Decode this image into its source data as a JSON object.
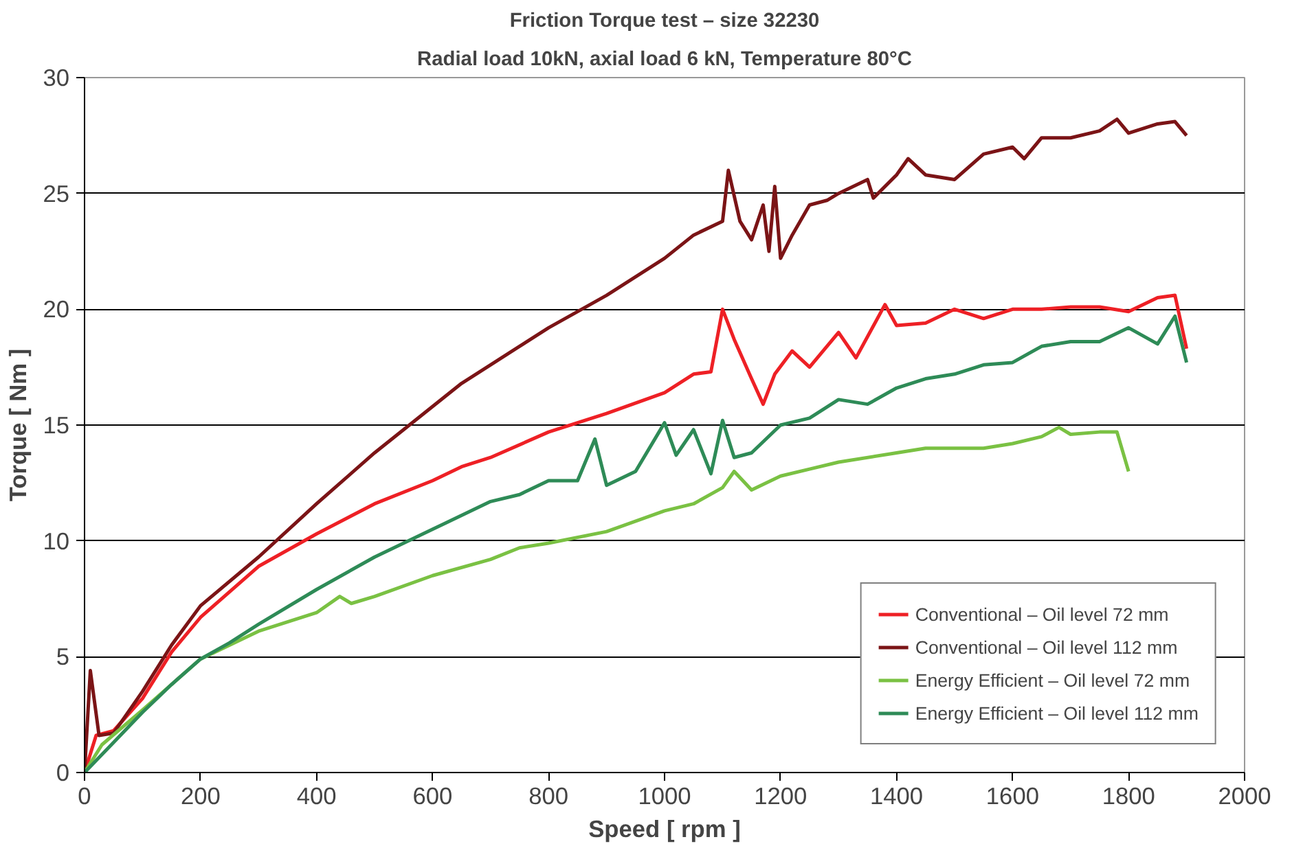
{
  "chart_data": {
    "type": "line",
    "title": "Friction Torque test – size 32230",
    "subtitle": "Radial load 10kN, axial load 6 kN, Temperature 80°C",
    "xlabel": "Speed [ rpm ]",
    "ylabel": "Torque [ Nm ]",
    "xlim": [
      0,
      2000
    ],
    "xticks": [
      0,
      200,
      400,
      600,
      800,
      1000,
      1200,
      1400,
      1600,
      1800,
      2000
    ],
    "ylim": [
      0,
      30
    ],
    "yticks": [
      0,
      5,
      10,
      15,
      20,
      25,
      30
    ],
    "grid": "y",
    "legend": "bottom right",
    "marker": "none",
    "line_style": "solid",
    "series": [
      {
        "name": "Conventional – Oil level 72 mm",
        "color": "#ee2025",
        "x": [
          0,
          20,
          50,
          100,
          150,
          200,
          300,
          400,
          500,
          600,
          650,
          700,
          800,
          900,
          1000,
          1050,
          1080,
          1100,
          1120,
          1150,
          1170,
          1190,
          1220,
          1250,
          1300,
          1330,
          1380,
          1400,
          1450,
          1500,
          1550,
          1600,
          1650,
          1700,
          1750,
          1800,
          1850,
          1880,
          1900
        ],
        "values": [
          0,
          1.6,
          1.8,
          3.2,
          5.2,
          6.7,
          8.9,
          10.3,
          11.6,
          12.6,
          13.2,
          13.6,
          14.7,
          15.5,
          16.4,
          17.2,
          17.3,
          20,
          18.7,
          17,
          15.9,
          17.2,
          18.2,
          17.5,
          19,
          17.9,
          20.2,
          19.3,
          19.4,
          20,
          19.6,
          20,
          20,
          20.1,
          20.1,
          19.9,
          20.5,
          20.6,
          18.3
        ]
      },
      {
        "name": "Conventional – Oil level 112 mm",
        "color": "#7b1416",
        "x": [
          0,
          10,
          25,
          50,
          100,
          150,
          200,
          300,
          400,
          500,
          600,
          650,
          700,
          800,
          900,
          1000,
          1050,
          1100,
          1110,
          1130,
          1150,
          1170,
          1180,
          1190,
          1200,
          1220,
          1250,
          1280,
          1300,
          1350,
          1360,
          1400,
          1420,
          1450,
          1500,
          1550,
          1600,
          1620,
          1650,
          1700,
          1750,
          1780,
          1800,
          1850,
          1880,
          1900
        ],
        "values": [
          0,
          4.4,
          1.6,
          1.7,
          3.5,
          5.5,
          7.2,
          9.3,
          11.6,
          13.8,
          15.8,
          16.8,
          17.6,
          19.2,
          20.6,
          22.2,
          23.2,
          23.8,
          26,
          23.8,
          23,
          24.5,
          22.5,
          25.3,
          22.2,
          23.2,
          24.5,
          24.7,
          25,
          25.6,
          24.8,
          25.8,
          26.5,
          25.8,
          25.6,
          26.7,
          27,
          26.5,
          27.4,
          27.4,
          27.7,
          28.2,
          27.6,
          28,
          28.1,
          27.5
        ]
      },
      {
        "name": "Energy Efficient – Oil level 72 mm",
        "color": "#7ac143",
        "x": [
          0,
          30,
          100,
          200,
          300,
          400,
          440,
          460,
          500,
          600,
          700,
          750,
          800,
          900,
          1000,
          1050,
          1100,
          1120,
          1150,
          1200,
          1250,
          1300,
          1400,
          1450,
          1500,
          1550,
          1600,
          1650,
          1680,
          1700,
          1750,
          1780,
          1800
        ],
        "values": [
          0,
          1.2,
          2.7,
          4.9,
          6.1,
          6.9,
          7.6,
          7.3,
          7.6,
          8.5,
          9.2,
          9.7,
          9.9,
          10.4,
          11.3,
          11.6,
          12.3,
          13,
          12.2,
          12.8,
          13.1,
          13.4,
          13.8,
          14,
          14,
          14,
          14.2,
          14.5,
          14.9,
          14.6,
          14.7,
          14.7,
          13
        ]
      },
      {
        "name": "Energy Efficient – Oil level 112 mm",
        "color": "#2e8b57",
        "x": [
          0,
          50,
          100,
          150,
          200,
          250,
          300,
          400,
          500,
          600,
          700,
          750,
          800,
          850,
          880,
          900,
          950,
          1000,
          1020,
          1050,
          1080,
          1100,
          1120,
          1150,
          1200,
          1250,
          1300,
          1350,
          1400,
          1450,
          1500,
          1550,
          1600,
          1650,
          1700,
          1750,
          1800,
          1850,
          1880,
          1900
        ],
        "values": [
          0,
          1.3,
          2.6,
          3.8,
          4.9,
          5.6,
          6.4,
          7.9,
          9.3,
          10.5,
          11.7,
          12,
          12.6,
          12.6,
          14.4,
          12.4,
          13,
          15.1,
          13.7,
          14.8,
          12.9,
          15.2,
          13.6,
          13.8,
          15,
          15.3,
          16.1,
          15.9,
          16.6,
          17,
          17.2,
          17.6,
          17.7,
          18.4,
          18.6,
          18.6,
          19.2,
          18.5,
          19.7,
          17.7
        ]
      }
    ]
  }
}
